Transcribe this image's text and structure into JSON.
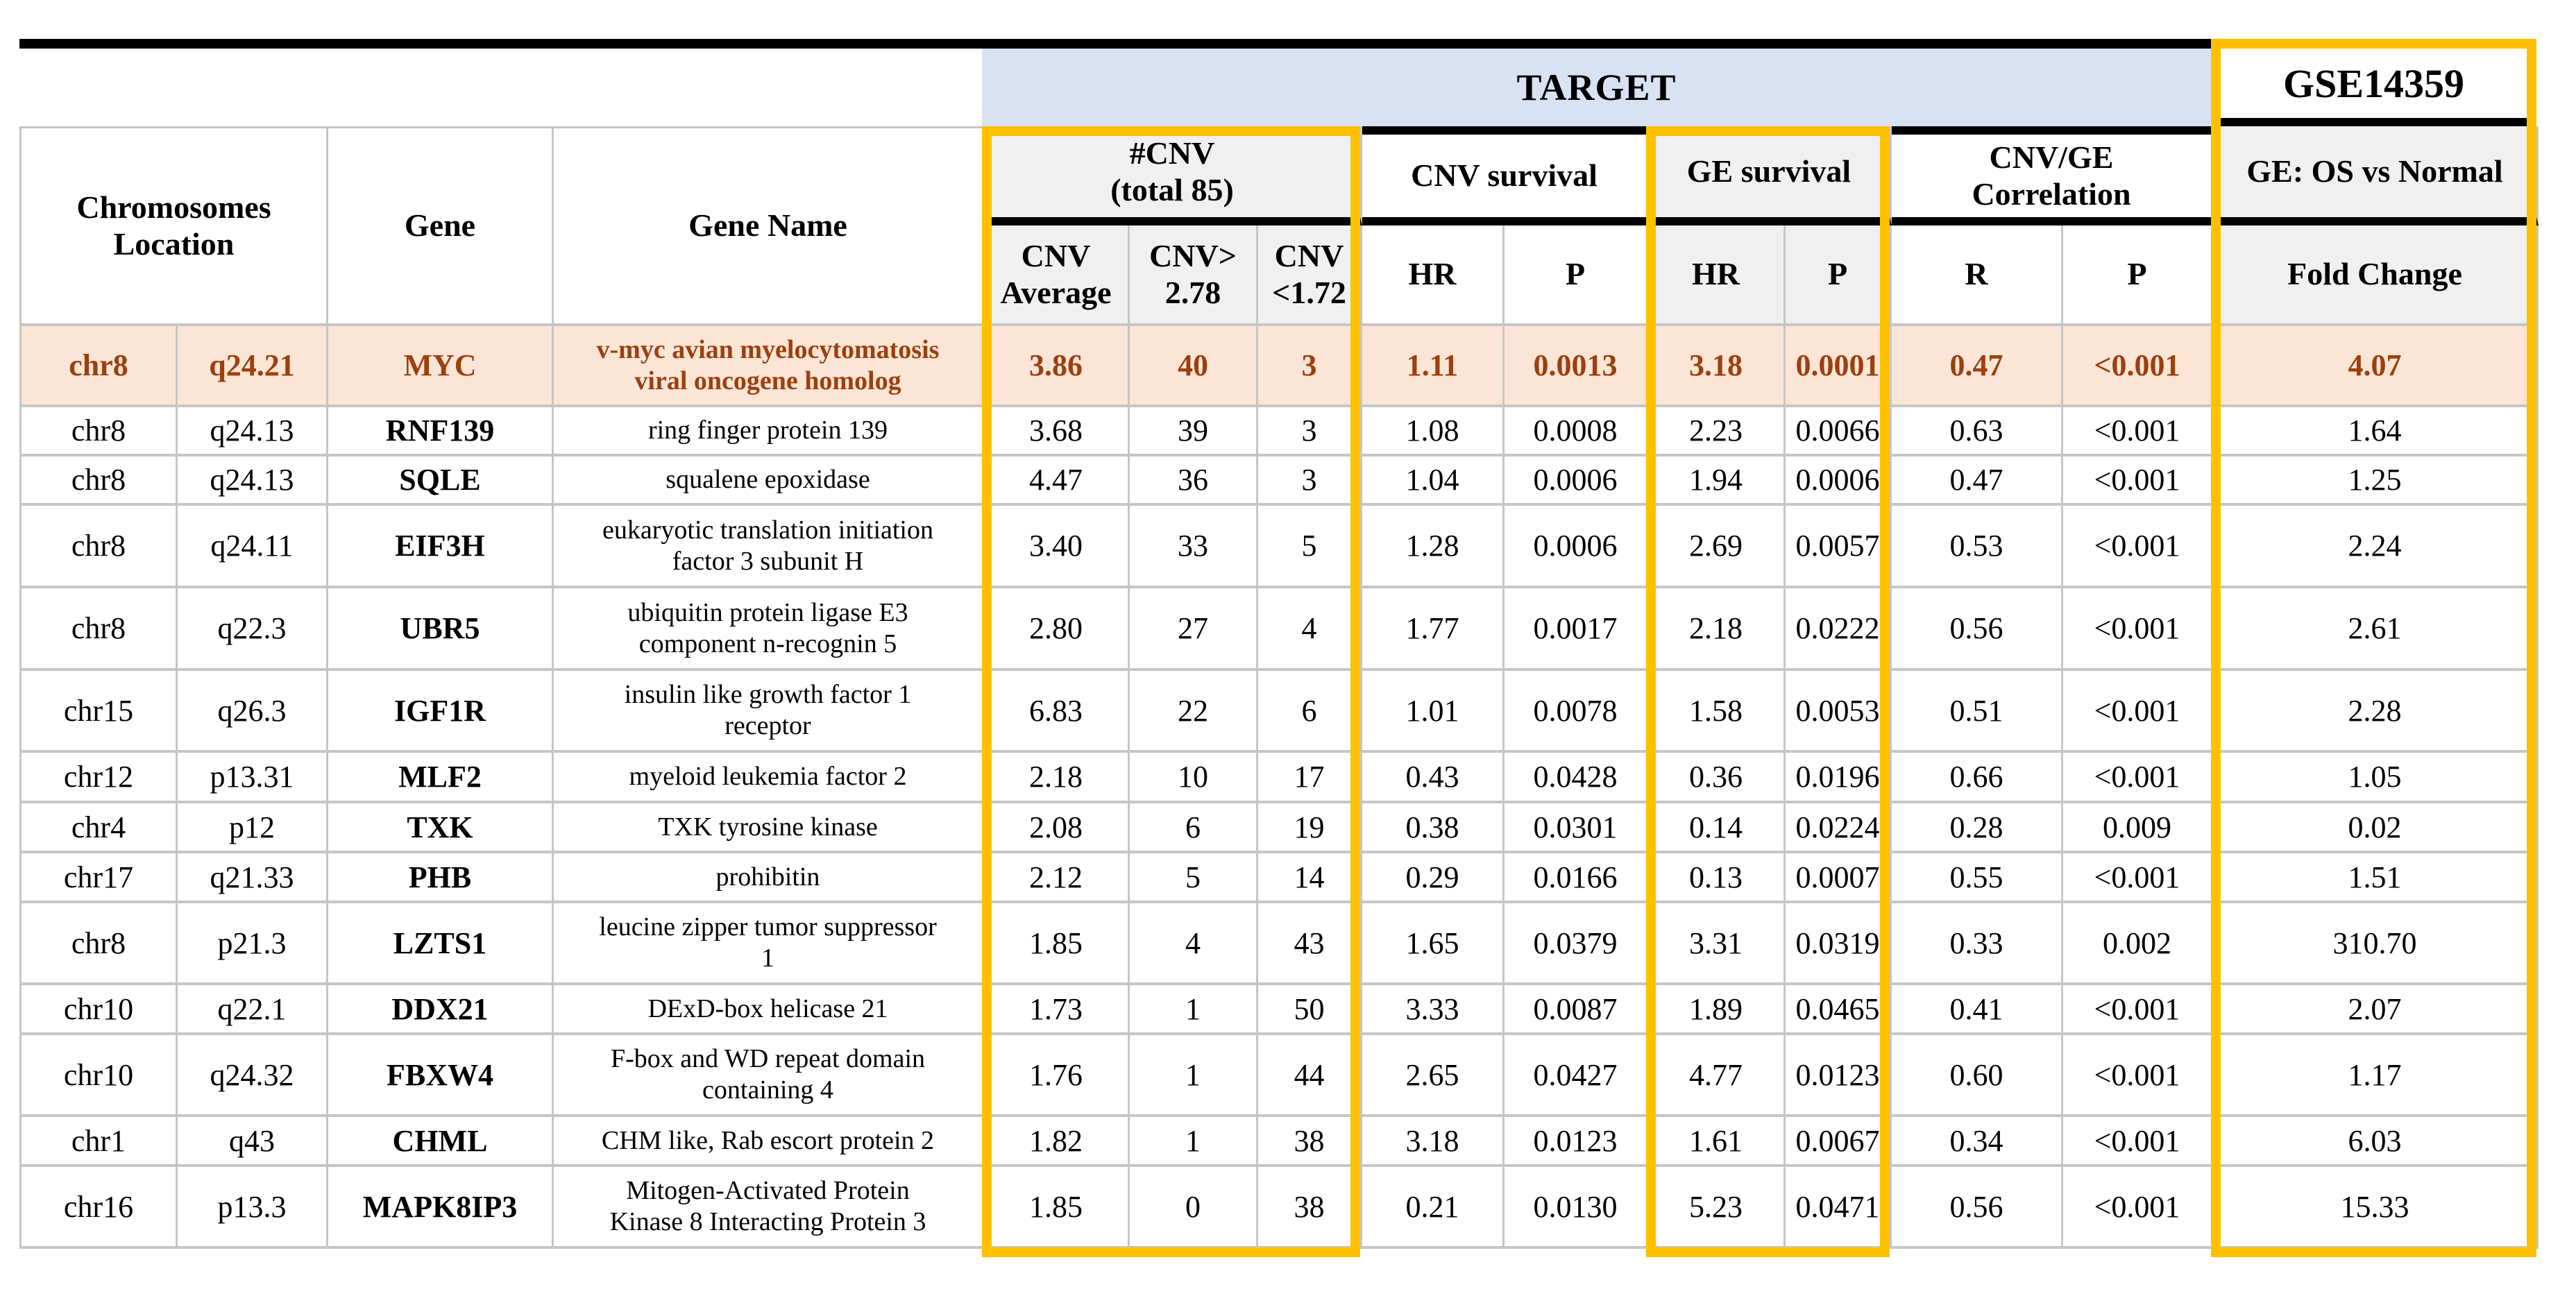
{
  "colors": {
    "accent_yellow": "#FFC000",
    "banner_blue": "#D9E2F3",
    "header_fill": "#F0F0F0",
    "grid_line": "#C6C6C6",
    "highlight_row_bg": "#FBE5D6",
    "highlight_row_text": "#9C400E"
  },
  "header": {
    "target_label": "TARGET",
    "gse_label": "GSE14359",
    "groups": {
      "chrom": "Chromosomes\nLocation",
      "gene": "Gene",
      "gene_name": "Gene Name",
      "cnv_count": "#CNV\n(total 85)",
      "cnv_survival": "CNV survival",
      "ge_survival": "GE survival",
      "cnv_ge_corr": "CNV/GE\nCorrelation",
      "ge_os": "GE: OS vs Normal"
    },
    "sub": {
      "cnv_avg": "CNV\nAverage",
      "cnv_gt": "CNV>\n2.78",
      "cnv_lt": "CNV\n<1.72",
      "hr1": "HR",
      "p1": "P",
      "hr2": "HR",
      "p2": "P",
      "r": "R",
      "p3": "P",
      "fold_change": "Fold Change"
    }
  },
  "rows": [
    {
      "highlight": true,
      "chr": "chr8",
      "loc": "q24.21",
      "gene": "MYC",
      "name": "v-myc avian myelocytomatosis\nviral oncogene homolog",
      "cnv_avg": "3.86",
      "cnv_gt278": "40",
      "cnv_lt172": "3",
      "cnv_hr": "1.11",
      "cnv_p": "0.0013",
      "ge_hr": "3.18",
      "ge_p": "0.0001",
      "r": "0.47",
      "p": "<0.001",
      "fold_change": "4.07"
    },
    {
      "highlight": false,
      "chr": "chr8",
      "loc": "q24.13",
      "gene": "RNF139",
      "name": "ring finger protein 139",
      "cnv_avg": "3.68",
      "cnv_gt278": "39",
      "cnv_lt172": "3",
      "cnv_hr": "1.08",
      "cnv_p": "0.0008",
      "ge_hr": "2.23",
      "ge_p": "0.0066",
      "r": "0.63",
      "p": "<0.001",
      "fold_change": "1.64"
    },
    {
      "highlight": false,
      "chr": "chr8",
      "loc": "q24.13",
      "gene": "SQLE",
      "name": "squalene epoxidase",
      "cnv_avg": "4.47",
      "cnv_gt278": "36",
      "cnv_lt172": "3",
      "cnv_hr": "1.04",
      "cnv_p": "0.0006",
      "ge_hr": "1.94",
      "ge_p": "0.0006",
      "r": "0.47",
      "p": "<0.001",
      "fold_change": "1.25"
    },
    {
      "highlight": false,
      "chr": "chr8",
      "loc": "q24.11",
      "gene": "EIF3H",
      "name": "eukaryotic translation initiation\nfactor 3 subunit H",
      "cnv_avg": "3.40",
      "cnv_gt278": "33",
      "cnv_lt172": "5",
      "cnv_hr": "1.28",
      "cnv_p": "0.0006",
      "ge_hr": "2.69",
      "ge_p": "0.0057",
      "r": "0.53",
      "p": "<0.001",
      "fold_change": "2.24"
    },
    {
      "highlight": false,
      "chr": "chr8",
      "loc": "q22.3",
      "gene": "UBR5",
      "name": "ubiquitin protein ligase E3\ncomponent n-recognin 5",
      "cnv_avg": "2.80",
      "cnv_gt278": "27",
      "cnv_lt172": "4",
      "cnv_hr": "1.77",
      "cnv_p": "0.0017",
      "ge_hr": "2.18",
      "ge_p": "0.0222",
      "r": "0.56",
      "p": "<0.001",
      "fold_change": "2.61"
    },
    {
      "highlight": false,
      "chr": "chr15",
      "loc": "q26.3",
      "gene": "IGF1R",
      "name": "insulin like growth factor 1\nreceptor",
      "cnv_avg": "6.83",
      "cnv_gt278": "22",
      "cnv_lt172": "6",
      "cnv_hr": "1.01",
      "cnv_p": "0.0078",
      "ge_hr": "1.58",
      "ge_p": "0.0053",
      "r": "0.51",
      "p": "<0.001",
      "fold_change": "2.28"
    },
    {
      "highlight": false,
      "chr": "chr12",
      "loc": "p13.31",
      "gene": "MLF2",
      "name": "myeloid leukemia factor 2",
      "cnv_avg": "2.18",
      "cnv_gt278": "10",
      "cnv_lt172": "17",
      "cnv_hr": "0.43",
      "cnv_p": "0.0428",
      "ge_hr": "0.36",
      "ge_p": "0.0196",
      "r": "0.66",
      "p": "<0.001",
      "fold_change": "1.05"
    },
    {
      "highlight": false,
      "chr": "chr4",
      "loc": "p12",
      "gene": "TXK",
      "name": "TXK tyrosine kinase",
      "cnv_avg": "2.08",
      "cnv_gt278": "6",
      "cnv_lt172": "19",
      "cnv_hr": "0.38",
      "cnv_p": "0.0301",
      "ge_hr": "0.14",
      "ge_p": "0.0224",
      "r": "0.28",
      "p": "0.009",
      "fold_change": "0.02"
    },
    {
      "highlight": false,
      "chr": "chr17",
      "loc": "q21.33",
      "gene": "PHB",
      "name": "prohibitin",
      "cnv_avg": "2.12",
      "cnv_gt278": "5",
      "cnv_lt172": "14",
      "cnv_hr": "0.29",
      "cnv_p": "0.0166",
      "ge_hr": "0.13",
      "ge_p": "0.0007",
      "r": "0.55",
      "p": "<0.001",
      "fold_change": "1.51"
    },
    {
      "highlight": false,
      "chr": "chr8",
      "loc": "p21.3",
      "gene": "LZTS1",
      "name": "leucine zipper tumor suppressor\n1",
      "cnv_avg": "1.85",
      "cnv_gt278": "4",
      "cnv_lt172": "43",
      "cnv_hr": "1.65",
      "cnv_p": "0.0379",
      "ge_hr": "3.31",
      "ge_p": "0.0319",
      "r": "0.33",
      "p": "0.002",
      "fold_change": "310.70"
    },
    {
      "highlight": false,
      "chr": "chr10",
      "loc": "q22.1",
      "gene": "DDX21",
      "name": "DExD-box helicase 21",
      "cnv_avg": "1.73",
      "cnv_gt278": "1",
      "cnv_lt172": "50",
      "cnv_hr": "3.33",
      "cnv_p": "0.0087",
      "ge_hr": "1.89",
      "ge_p": "0.0465",
      "r": "0.41",
      "p": "<0.001",
      "fold_change": "2.07"
    },
    {
      "highlight": false,
      "chr": "chr10",
      "loc": "q24.32",
      "gene": "FBXW4",
      "name": "F-box and WD repeat domain\ncontaining 4",
      "cnv_avg": "1.76",
      "cnv_gt278": "1",
      "cnv_lt172": "44",
      "cnv_hr": "2.65",
      "cnv_p": "0.0427",
      "ge_hr": "4.77",
      "ge_p": "0.0123",
      "r": "0.60",
      "p": "<0.001",
      "fold_change": "1.17"
    },
    {
      "highlight": false,
      "chr": "chr1",
      "loc": "q43",
      "gene": "CHML",
      "name": "CHM like, Rab escort protein 2",
      "cnv_avg": "1.82",
      "cnv_gt278": "1",
      "cnv_lt172": "38",
      "cnv_hr": "3.18",
      "cnv_p": "0.0123",
      "ge_hr": "1.61",
      "ge_p": "0.0067",
      "r": "0.34",
      "p": "<0.001",
      "fold_change": "6.03"
    },
    {
      "highlight": false,
      "chr": "chr16",
      "loc": "p13.3",
      "gene": "MAPK8IP3",
      "name": "Mitogen-Activated Protein\nKinase 8 Interacting Protein 3",
      "cnv_avg": "1.85",
      "cnv_gt278": "0",
      "cnv_lt172": "38",
      "cnv_hr": "0.21",
      "cnv_p": "0.0130",
      "ge_hr": "5.23",
      "ge_p": "0.0471",
      "r": "0.56",
      "p": "<0.001",
      "fold_change": "15.33"
    }
  ]
}
